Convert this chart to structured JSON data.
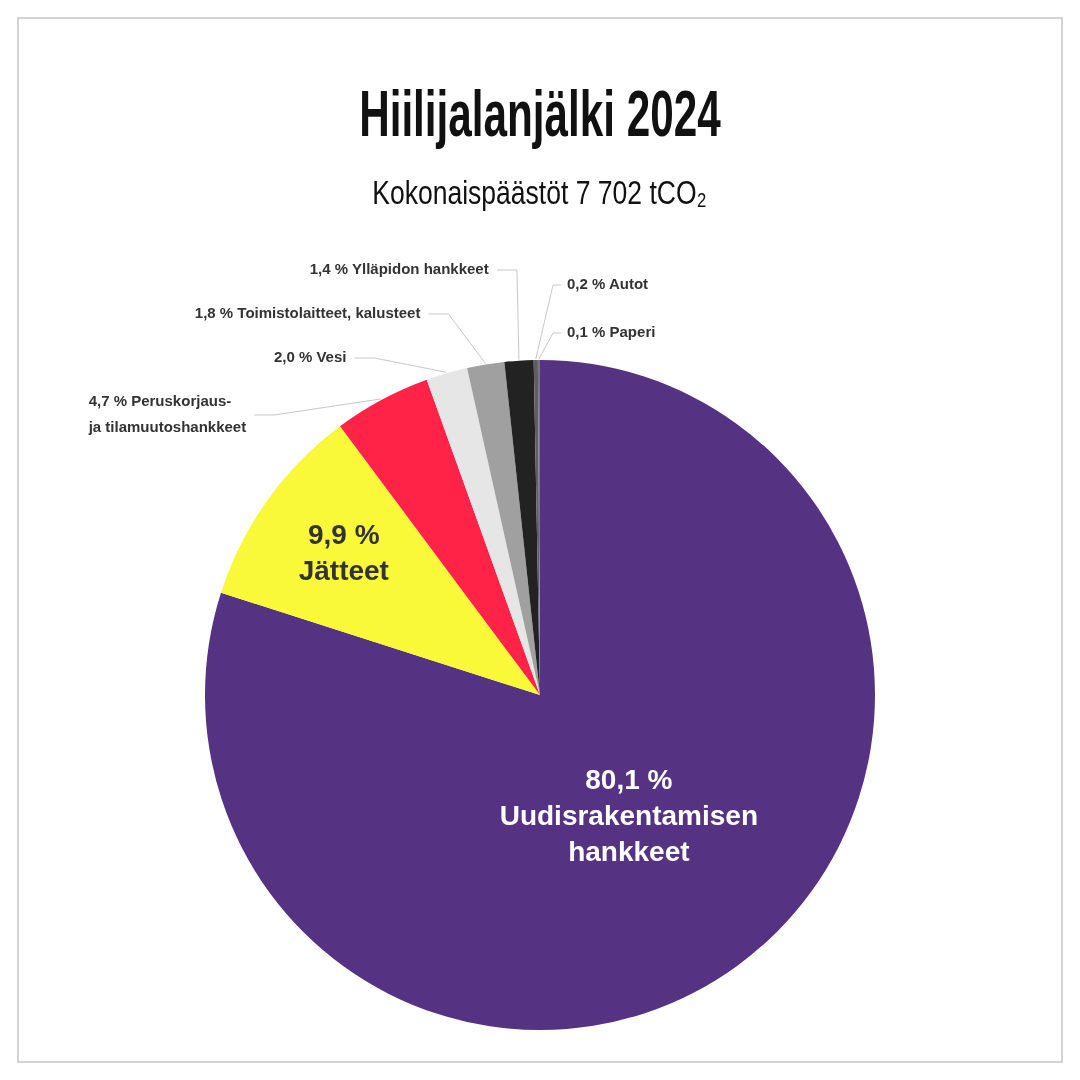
{
  "chart_data": {
    "type": "pie",
    "title": "Hiilijalanjälki 2024",
    "subtitle": "Kokonaispäästöt 7 702 tCO₂",
    "categories": [
      "Uudisrakentamisen hankkeet",
      "Jätteet",
      "Peruskorjaus-\nja tilamuutoshankkeet",
      "Vesi",
      "Toimistolaitteet, kalusteet",
      "Ylläpidon hankkeet",
      "Autot",
      "Paperi"
    ],
    "values": [
      80.1,
      9.9,
      4.7,
      2.0,
      1.8,
      1.4,
      0.2,
      0.1
    ],
    "colors": [
      "#553282",
      "#f9f93a",
      "#ff2348",
      "#e6e6e6",
      "#a0a0a0",
      "#222222",
      "#5e5e5e",
      "#777777"
    ],
    "value_labels": [
      "80,1 %",
      "9,9 %",
      "4,7 %",
      "2,0 %",
      "1,8 %",
      "1,4 %",
      "0,2 %",
      "0,1 %"
    ]
  }
}
